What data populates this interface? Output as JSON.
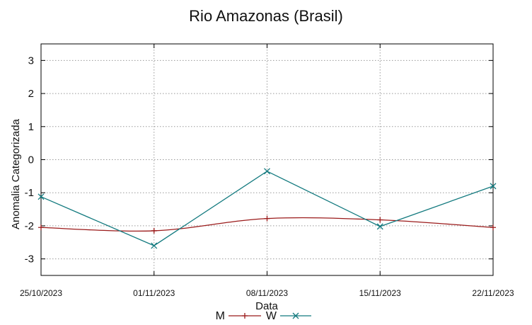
{
  "chart_data": {
    "type": "line",
    "title": "Rio Amazonas (Brasil)",
    "xlabel": "Data",
    "ylabel": "Anomalia Categorizada",
    "categories": [
      "25/10/2023",
      "01/11/2023",
      "08/11/2023",
      "15/11/2023",
      "22/11/2023"
    ],
    "ylim": [
      -3.5,
      3.5
    ],
    "yticks": [
      3,
      2,
      1,
      0,
      -1,
      -2,
      -3
    ],
    "grid": true,
    "legend_position": "bottom-center",
    "series": [
      {
        "name": "M",
        "color": "#9b1b1b",
        "marker": "plus",
        "smooth": true,
        "values": [
          -2.05,
          -2.15,
          -1.78,
          -1.82,
          -2.05
        ]
      },
      {
        "name": "W",
        "color": "#137a7f",
        "marker": "cross",
        "smooth": false,
        "values": [
          -1.12,
          -2.6,
          -0.35,
          -2.02,
          -0.8
        ]
      }
    ]
  }
}
